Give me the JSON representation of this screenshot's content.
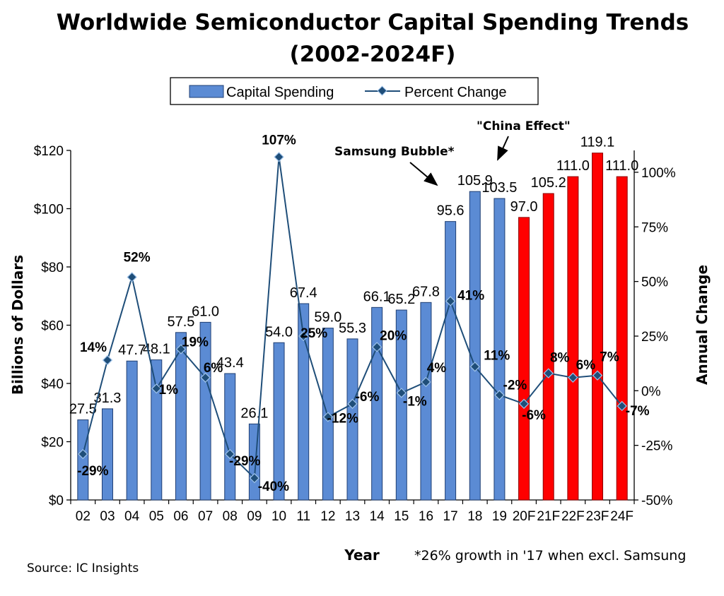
{
  "chart_data": {
    "type": "bar",
    "title": "Worldwide Semiconductor Capital Spending Trends",
    "subtitle": "(2002-2024F)",
    "categories": [
      "02",
      "03",
      "04",
      "05",
      "06",
      "07",
      "08",
      "09",
      "10",
      "11",
      "12",
      "13",
      "14",
      "15",
      "16",
      "17",
      "18",
      "19",
      "20F",
      "21F",
      "22F",
      "23F",
      "24F"
    ],
    "series": [
      {
        "name": "Capital Spending",
        "kind": "bar",
        "axis": "left",
        "values": [
          27.5,
          31.3,
          47.7,
          48.1,
          57.5,
          61.0,
          43.4,
          26.1,
          54.0,
          67.4,
          59.0,
          55.3,
          66.1,
          65.2,
          67.8,
          95.6,
          105.9,
          103.5,
          97.0,
          105.2,
          111.0,
          119.1,
          111.0
        ],
        "labels": [
          "27.5",
          "31.3",
          "47.7",
          "48.1",
          "57.5",
          "61.0",
          "43.4",
          "26.1",
          "54.0",
          "67.4",
          "59.0",
          "55.3",
          "66.1",
          "65.2",
          "67.8",
          "95.6",
          "105.9",
          "103.5",
          "97.0",
          "105.2",
          "111.0",
          "119.1",
          "111.0"
        ],
        "colors": {
          "actual": "#5b8bd4",
          "forecast": "#ff0000"
        },
        "forecast_from_index": 18
      },
      {
        "name": "Percent Change",
        "kind": "line",
        "axis": "right",
        "values": [
          -29,
          14,
          52,
          1,
          19,
          6,
          -29,
          -40,
          107,
          25,
          -12,
          -6,
          20,
          -1,
          4,
          41,
          11,
          -2,
          -6,
          8,
          6,
          7,
          -7
        ],
        "labels": [
          "-29%",
          "14%",
          "52%",
          "1%",
          "19%",
          "6%",
          "-29%",
          "-40%",
          "107%",
          "25%",
          "-12%",
          "-6%",
          "20%",
          "-1%",
          "4%",
          "41%",
          "11%",
          "-2%",
          "-6%",
          "8%",
          "6%",
          "7%",
          "-7%"
        ],
        "color": "#1f4e79"
      }
    ],
    "xlabel": "Year",
    "ylabel": "Billions of Dollars",
    "y2label": "Annual Change",
    "ylim": [
      0,
      120
    ],
    "yticks": [
      "$0",
      "$20",
      "$40",
      "$60",
      "$80",
      "$100",
      "$120"
    ],
    "y2lim": [
      -50,
      110
    ],
    "y2ticks": [
      "-50%",
      "-25%",
      "0%",
      "25%",
      "50%",
      "75%",
      "100%"
    ],
    "legend": {
      "position": "top",
      "entries": [
        "Capital Spending",
        "Percent Change"
      ]
    },
    "annotations": [
      {
        "text": "Samsung Bubble*",
        "points_to": "17"
      },
      {
        "text": "\"China Effect\"",
        "points_to": "19"
      }
    ],
    "footnote": "*26% growth in '17 when excl. Samsung",
    "source": "Source: IC Insights"
  }
}
